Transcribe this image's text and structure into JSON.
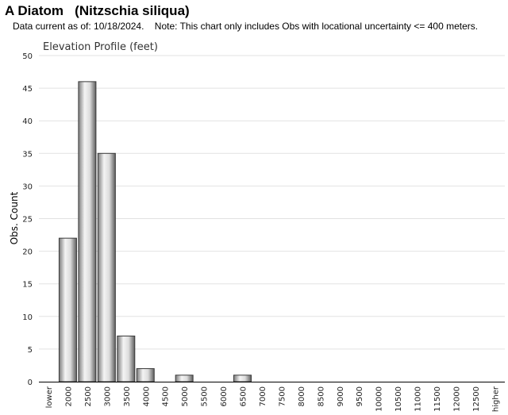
{
  "header": {
    "title": "A Diatom   (Nitzschia siliqua)",
    "subtitle": "Data current as of: 10/18/2024.    Note: This chart only includes Obs with locational uncertainty <= 400 meters."
  },
  "chart_data": {
    "type": "bar",
    "title": "Elevation Profile (feet)",
    "xlabel": "",
    "ylabel": "Obs. Count",
    "ylim": [
      0,
      50
    ],
    "yticks": [
      0,
      5,
      10,
      15,
      20,
      25,
      30,
      35,
      40,
      45,
      50
    ],
    "grid": true,
    "categories": [
      "lower",
      "2000",
      "2500",
      "3000",
      "3500",
      "4000",
      "4500",
      "5000",
      "5500",
      "6000",
      "6500",
      "7000",
      "7500",
      "8000",
      "8500",
      "9000",
      "9500",
      "10000",
      "10500",
      "11000",
      "11500",
      "12000",
      "12500",
      "higher"
    ],
    "values": [
      0,
      22,
      46,
      35,
      7,
      2,
      0,
      1,
      0,
      0,
      1,
      0,
      0,
      0,
      0,
      0,
      0,
      0,
      0,
      0,
      0,
      0,
      0,
      0
    ]
  }
}
